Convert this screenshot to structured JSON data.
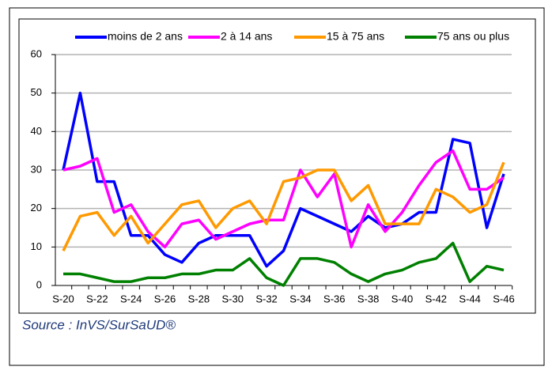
{
  "chart_data": {
    "type": "line",
    "categories": [
      "S-20",
      null,
      "S-22",
      null,
      "S-24",
      null,
      "S-26",
      null,
      "S-28",
      null,
      "S-30",
      null,
      "S-32",
      null,
      "S-34",
      null,
      "S-36",
      null,
      "S-38",
      null,
      "S-40",
      null,
      "S-42",
      null,
      "S-44",
      null,
      "S-46"
    ],
    "series": [
      {
        "name": "moins de 2 ans",
        "color": "#0000ff",
        "values": [
          30,
          50,
          27,
          27,
          13,
          13,
          8,
          6,
          11,
          13,
          13,
          13,
          5,
          9,
          20,
          18,
          16,
          14,
          18,
          15,
          16,
          19,
          19,
          38,
          37,
          15,
          29
        ]
      },
      {
        "name": "2 à 14 ans",
        "color": "#ff00ff",
        "values": [
          30,
          31,
          33,
          19,
          21,
          14,
          10,
          16,
          17,
          12,
          14,
          16,
          17,
          17,
          30,
          23,
          29,
          10,
          21,
          14,
          19,
          26,
          32,
          35,
          25,
          25,
          28
        ]
      },
      {
        "name": "15 à 75 ans",
        "color": "#ff9900",
        "values": [
          9,
          18,
          19,
          13,
          18,
          11,
          16,
          21,
          22,
          15,
          20,
          22,
          16,
          27,
          28,
          30,
          30,
          22,
          26,
          16,
          16,
          16,
          25,
          23,
          19,
          21,
          32
        ]
      },
      {
        "name": "75 ans ou plus",
        "color": "#008000",
        "values": [
          3,
          3,
          2,
          1,
          1,
          2,
          2,
          3,
          3,
          4,
          4,
          7,
          2,
          0,
          7,
          7,
          6,
          3,
          1,
          3,
          4,
          6,
          7,
          11,
          1,
          5,
          4
        ]
      }
    ],
    "ylim": [
      0,
      60
    ],
    "yticks": [
      0,
      10,
      20,
      30,
      40,
      50,
      60
    ],
    "grid": true,
    "source": "Source : InVS/SurSaUD®"
  }
}
